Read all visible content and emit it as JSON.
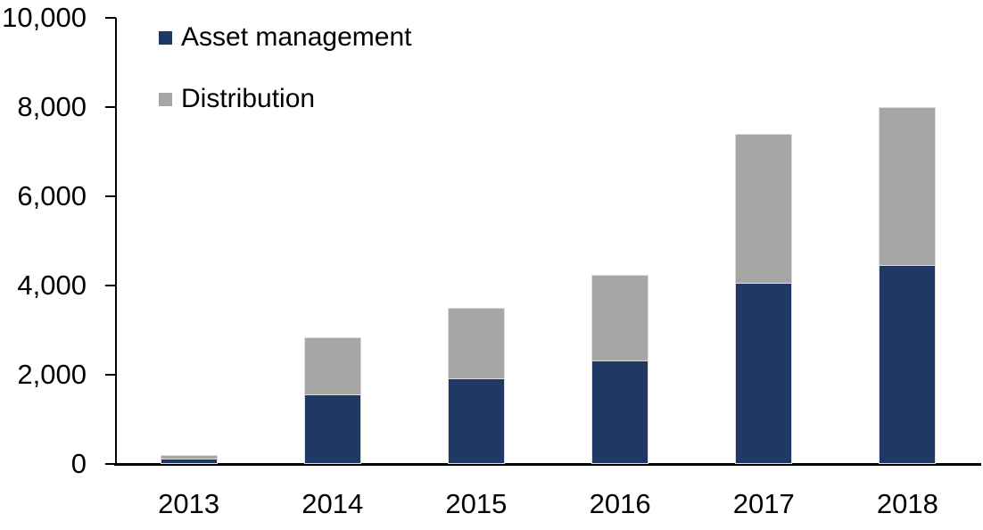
{
  "chart_data": {
    "type": "bar",
    "stacked": true,
    "title": "",
    "xlabel": "",
    "ylabel": "",
    "categories": [
      "2013",
      "2014",
      "2015",
      "2016",
      "2017",
      "2018"
    ],
    "series": [
      {
        "name": "Asset management",
        "color": "#1F3864",
        "values": [
          100,
          1550,
          1900,
          2300,
          4050,
          4450
        ]
      },
      {
        "name": "Distribution",
        "color": "#A6A6A6",
        "values": [
          100,
          1300,
          1600,
          1950,
          3350,
          3550
        ]
      }
    ],
    "totals": [
      200,
      2850,
      3500,
      4250,
      7400,
      8000
    ],
    "ylim": [
      0,
      10000
    ],
    "yticks": [
      0,
      2000,
      4000,
      6000,
      8000,
      10000
    ],
    "ytick_labels": [
      "0",
      "2,000",
      "4,000",
      "6,000",
      "8,000",
      "10,000"
    ],
    "grid": false,
    "legend_position": "top-left-inside",
    "axis_color": "#000000"
  }
}
